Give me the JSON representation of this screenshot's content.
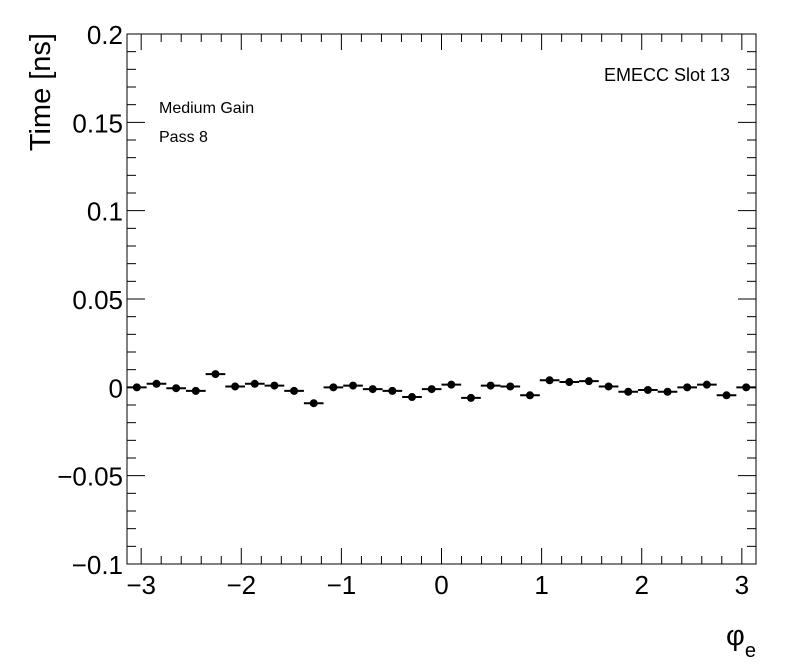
{
  "chart_data": {
    "type": "scatter",
    "title": "",
    "xlabel": "φ",
    "xlabel_sub": "e",
    "ylabel": "Time [ns]",
    "xlim": [
      -3.1416,
      3.1416
    ],
    "ylim": [
      -0.1,
      0.2
    ],
    "x_ticks": [
      -3,
      -2,
      -1,
      0,
      1,
      2,
      3
    ],
    "x_tick_labels": [
      "−3",
      "−2",
      "−1",
      "0",
      "1",
      "2",
      "3"
    ],
    "y_ticks": [
      -0.1,
      -0.05,
      0,
      0.05,
      0.1,
      0.15,
      0.2
    ],
    "y_tick_labels": [
      "−0.1",
      "−0.05",
      "0",
      "0.05",
      "0.1",
      "0.15",
      "0.2"
    ],
    "grid": false,
    "annotations": {
      "top_right": "EMECC Slot 13",
      "gain": "Medium Gain",
      "pass": "Pass 8"
    },
    "series": [
      {
        "marker": "filled-circle",
        "color": "#000000",
        "bin_half_width": 0.0982,
        "x": [
          -3.0434,
          -2.8471,
          -2.6507,
          -2.4544,
          -2.258,
          -2.0617,
          -1.8653,
          -1.669,
          -1.4726,
          -1.2763,
          -1.0799,
          -0.8836,
          -0.6872,
          -0.4909,
          -0.2945,
          -0.0982,
          0.0982,
          0.2945,
          0.4909,
          0.6872,
          0.8836,
          1.0799,
          1.2763,
          1.4726,
          1.669,
          1.8653,
          2.0617,
          2.258,
          2.4544,
          2.6507,
          2.8471,
          3.0434
        ],
        "y": [
          0.0,
          0.002,
          -0.0005,
          -0.002,
          0.0075,
          0.0005,
          0.002,
          0.001,
          -0.002,
          -0.009,
          0.0,
          0.001,
          -0.001,
          -0.002,
          -0.0055,
          -0.001,
          0.0015,
          -0.006,
          0.001,
          0.0005,
          -0.0045,
          0.004,
          0.003,
          0.0035,
          0.0005,
          -0.0025,
          -0.0015,
          -0.0025,
          0.0,
          0.0015,
          -0.0045,
          0.0
        ]
      }
    ]
  }
}
